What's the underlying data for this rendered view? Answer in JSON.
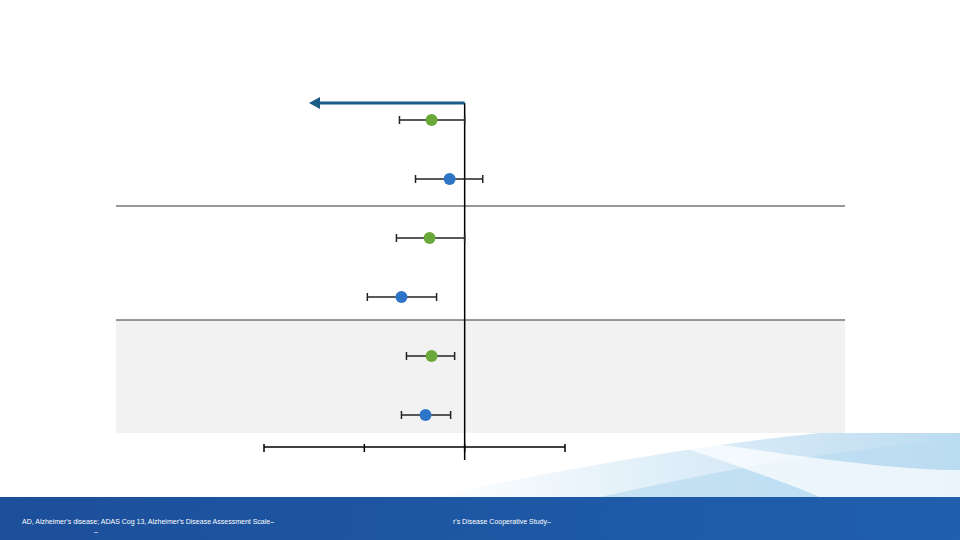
{
  "chart_data": {
    "type": "forest",
    "orientation": "horizontal",
    "categories": [
      null,
      null,
      null,
      null,
      null,
      null
    ],
    "values": [
      -0.33,
      -0.15,
      -0.35,
      -0.63,
      -0.33,
      -0.39
    ],
    "ci_lower": [
      -0.65,
      -0.49,
      -0.68,
      -0.97,
      -0.58,
      -0.63
    ],
    "ci_upper": [
      0.0,
      0.18,
      0.0,
      -0.28,
      -0.1,
      -0.14
    ],
    "colors": [
      "#6aa83a",
      "#2e75c7",
      "#6aa83a",
      "#2e75c7",
      "#6aa83a",
      "#2e75c7"
    ],
    "marker": "circle",
    "xlim": [
      -2,
      1
    ],
    "xticks": [
      -2,
      -1,
      0,
      1
    ],
    "tick_labels": false,
    "grid": false
  },
  "footer": {
    "lines": [
      "AD, Alzheimer's disease; ADAS Cog 13, Alzheimer's Disease Assessment Scale–",
      "–",
      "r's Disease Cooperative Study–"
    ]
  }
}
